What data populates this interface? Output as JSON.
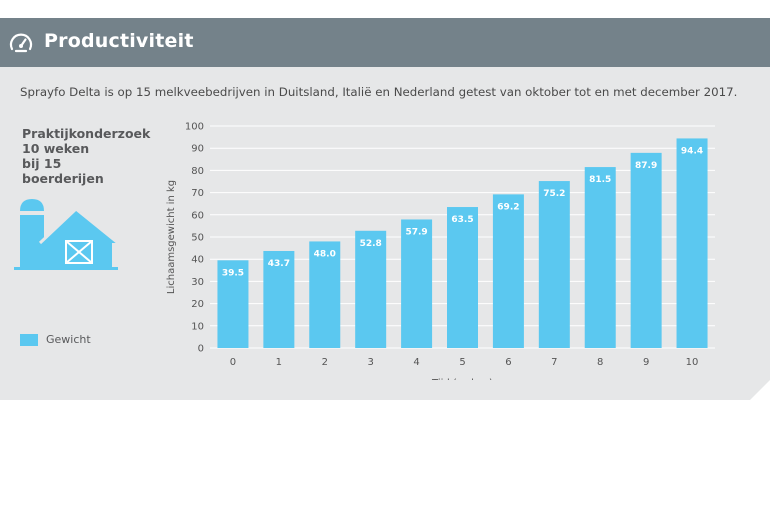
{
  "header": {
    "title": "Productiviteit",
    "icon": "speedometer-icon"
  },
  "intro": "Sprayfo Delta is op 15 melkveebedrijven in Duitsland, Italië en Nederland getest van oktober tot en met december 2017.",
  "side": {
    "line1": "Praktijkonderzoek",
    "line2": "10 weken",
    "line3": "bij 15",
    "line4": "boerderijen",
    "icon": "farm-icon"
  },
  "legend": {
    "label": "Gewicht",
    "color": "#5bc8f0"
  },
  "colors": {
    "header": "#74828a",
    "background": "#e6e7e8",
    "bar": "#5bc8f0"
  },
  "chart_data": {
    "type": "bar",
    "categories": [
      "0",
      "1",
      "2",
      "3",
      "4",
      "5",
      "6",
      "7",
      "8",
      "9",
      "10"
    ],
    "series": [
      {
        "name": "Gewicht",
        "values": [
          39.5,
          43.7,
          48.0,
          52.8,
          57.9,
          63.5,
          69.2,
          75.2,
          81.5,
          87.9,
          94.4
        ]
      }
    ],
    "data_labels": [
      "39.5",
      "43.7",
      "48.0",
      "52.8",
      "57.9",
      "63.5",
      "69.2",
      "75.2",
      "81.5",
      "87.9",
      "94.4"
    ],
    "xlabel": "Tijd (weken)",
    "ylabel": "Lichaamsgewicht in kg",
    "ylim": [
      0,
      100
    ],
    "yticks": [
      0,
      10,
      20,
      30,
      40,
      50,
      60,
      70,
      80,
      90,
      100
    ],
    "grid": true,
    "legend_position": "bottom-left"
  }
}
